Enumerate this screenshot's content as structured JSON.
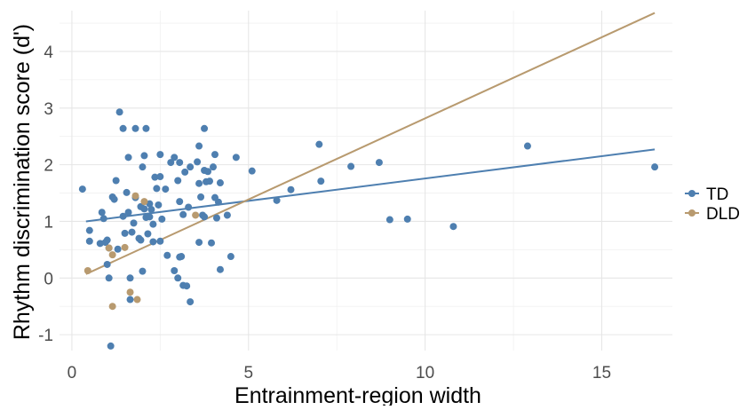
{
  "chart_data": {
    "type": "scatter",
    "xlabel": "Entrainment-region width",
    "ylabel": "Rhythm discrimination score (d')",
    "xlim": [
      -0.35,
      17.0
    ],
    "ylim": [
      -1.28,
      4.72
    ],
    "x_ticks": [
      0,
      5,
      10,
      15
    ],
    "y_ticks": [
      -1,
      0,
      1,
      2,
      3,
      4
    ],
    "grid": true,
    "legend_position": "right",
    "series": [
      {
        "name": "TD",
        "color": "#4e7fb0",
        "points": [
          [
            0.3,
            1.57
          ],
          [
            0.5,
            0.84
          ],
          [
            0.5,
            0.65
          ],
          [
            0.8,
            0.61
          ],
          [
            0.85,
            1.16
          ],
          [
            0.9,
            1.05
          ],
          [
            0.95,
            0.63
          ],
          [
            1.0,
            0.67
          ],
          [
            1.0,
            0.24
          ],
          [
            1.05,
            0.0
          ],
          [
            1.05,
            0.53
          ],
          [
            1.1,
            -1.2
          ],
          [
            1.15,
            1.43
          ],
          [
            1.2,
            1.39
          ],
          [
            1.25,
            1.72
          ],
          [
            1.3,
            0.51
          ],
          [
            1.35,
            2.93
          ],
          [
            1.45,
            1.09
          ],
          [
            1.45,
            2.64
          ],
          [
            1.5,
            0.79
          ],
          [
            1.55,
            1.51
          ],
          [
            1.6,
            2.13
          ],
          [
            1.6,
            1.16
          ],
          [
            1.65,
            0.0
          ],
          [
            1.65,
            -0.38
          ],
          [
            1.7,
            0.81
          ],
          [
            1.75,
            0.97
          ],
          [
            1.8,
            1.42
          ],
          [
            1.8,
            2.64
          ],
          [
            1.9,
            0.7
          ],
          [
            1.95,
            0.67
          ],
          [
            1.95,
            1.26
          ],
          [
            2.0,
            0.12
          ],
          [
            2.0,
            1.96
          ],
          [
            2.05,
            1.22
          ],
          [
            2.05,
            2.16
          ],
          [
            2.1,
            2.64
          ],
          [
            2.1,
            1.07
          ],
          [
            2.15,
            0.78
          ],
          [
            2.2,
            1.31
          ],
          [
            2.2,
            1.08
          ],
          [
            2.25,
            1.21
          ],
          [
            2.3,
            0.95
          ],
          [
            2.3,
            0.64
          ],
          [
            2.35,
            1.78
          ],
          [
            2.4,
            1.58
          ],
          [
            2.45,
            1.29
          ],
          [
            2.5,
            0.65
          ],
          [
            2.5,
            1.79
          ],
          [
            2.5,
            2.18
          ],
          [
            2.55,
            1.04
          ],
          [
            2.65,
            1.57
          ],
          [
            2.7,
            0.4
          ],
          [
            2.8,
            2.04
          ],
          [
            2.9,
            0.13
          ],
          [
            2.9,
            2.13
          ],
          [
            3.0,
            0.0
          ],
          [
            3.0,
            1.72
          ],
          [
            3.05,
            0.37
          ],
          [
            3.05,
            2.04
          ],
          [
            3.05,
            1.35
          ],
          [
            3.1,
            0.38
          ],
          [
            3.15,
            1.12
          ],
          [
            3.15,
            -0.13
          ],
          [
            3.2,
            1.87
          ],
          [
            3.25,
            -0.14
          ],
          [
            3.3,
            1.25
          ],
          [
            3.35,
            1.96
          ],
          [
            3.35,
            -0.42
          ],
          [
            3.55,
            2.05
          ],
          [
            3.6,
            2.33
          ],
          [
            3.6,
            1.67
          ],
          [
            3.6,
            0.63
          ],
          [
            3.65,
            1.43
          ],
          [
            3.7,
            1.11
          ],
          [
            3.75,
            1.08
          ],
          [
            3.75,
            1.9
          ],
          [
            3.75,
            2.64
          ],
          [
            3.8,
            1.7
          ],
          [
            3.85,
            1.88
          ],
          [
            3.9,
            1.71
          ],
          [
            3.95,
            0.62
          ],
          [
            4.0,
            1.96
          ],
          [
            4.05,
            2.18
          ],
          [
            4.05,
            1.42
          ],
          [
            4.1,
            1.06
          ],
          [
            4.15,
            1.34
          ],
          [
            4.2,
            1.68
          ],
          [
            4.2,
            0.15
          ],
          [
            4.4,
            1.11
          ],
          [
            4.5,
            0.38
          ],
          [
            4.65,
            2.13
          ],
          [
            5.1,
            1.89
          ],
          [
            5.8,
            1.37
          ],
          [
            6.2,
            1.56
          ],
          [
            7.0,
            2.36
          ],
          [
            7.05,
            1.71
          ],
          [
            7.9,
            1.97
          ],
          [
            8.7,
            2.04
          ],
          [
            9.0,
            1.03
          ],
          [
            9.5,
            1.04
          ],
          [
            10.8,
            0.91
          ],
          [
            12.9,
            2.33
          ],
          [
            16.5,
            1.96
          ]
        ],
        "fit_line": [
          [
            0.4,
            1.0
          ],
          [
            16.5,
            2.27
          ]
        ]
      },
      {
        "name": "DLD",
        "color": "#b89a6f",
        "points": [
          [
            0.45,
            0.13
          ],
          [
            1.05,
            0.53
          ],
          [
            1.15,
            -0.5
          ],
          [
            1.15,
            0.41
          ],
          [
            1.5,
            0.54
          ],
          [
            1.65,
            -0.25
          ],
          [
            1.8,
            1.45
          ],
          [
            1.85,
            -0.38
          ],
          [
            2.05,
            1.35
          ],
          [
            3.5,
            1.11
          ]
        ],
        "fit_line": [
          [
            0.4,
            0.07
          ],
          [
            16.5,
            4.68
          ]
        ]
      }
    ]
  }
}
